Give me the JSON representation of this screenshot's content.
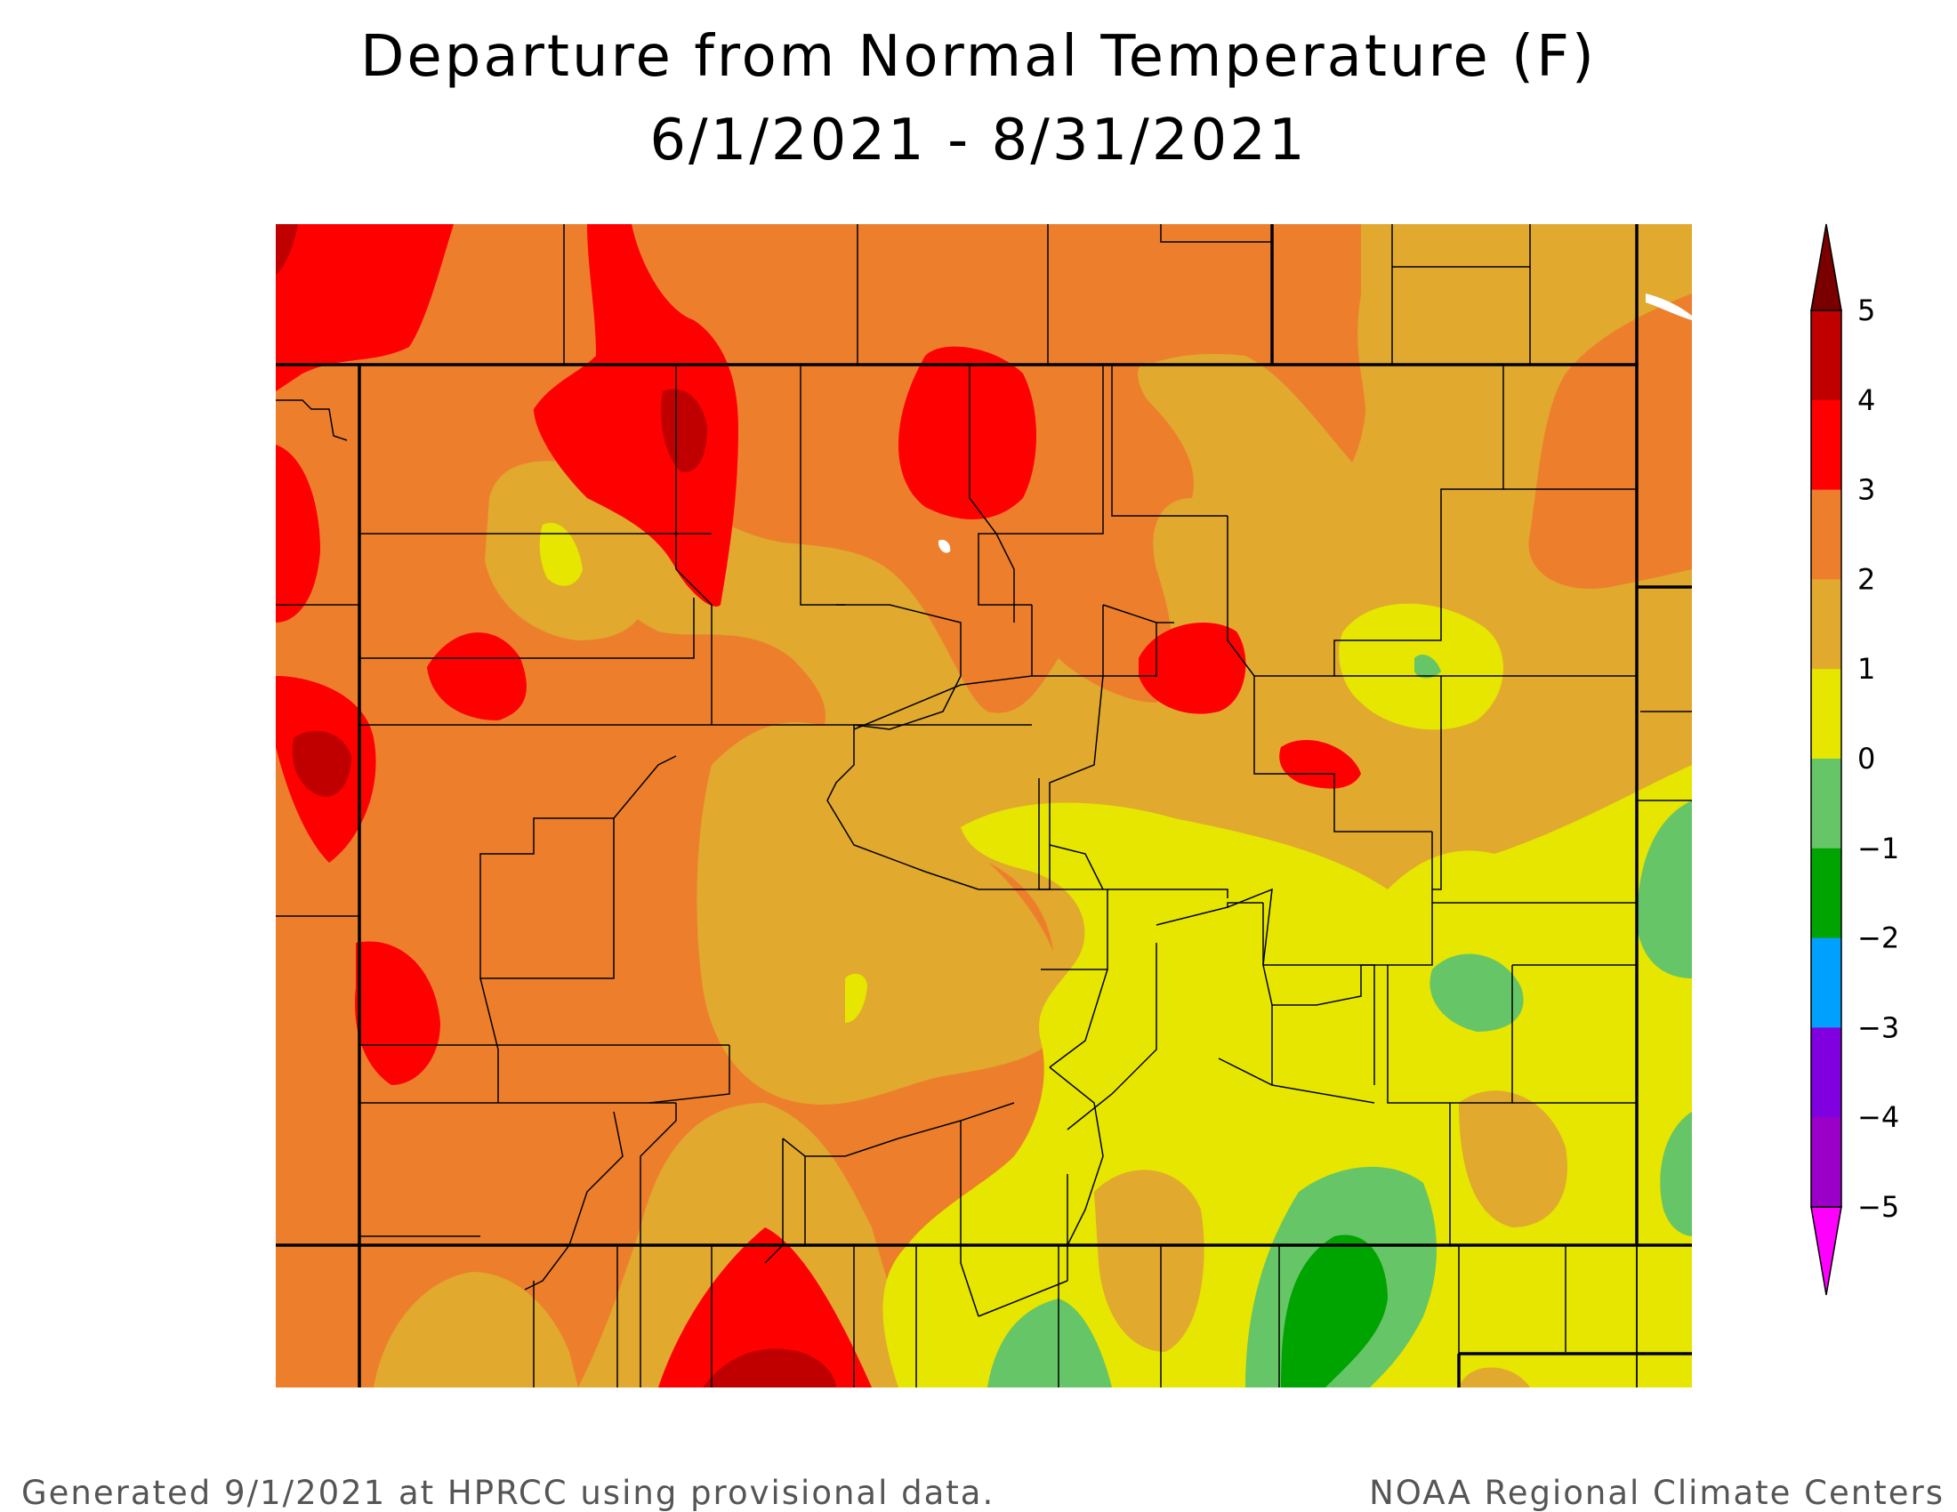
{
  "title_line1": "Departure from Normal Temperature (F)",
  "title_line2": "6/1/2021 - 8/31/2021",
  "footer_left": "Generated 9/1/2021 at HPRCC using provisional data.",
  "footer_right": "NOAA Regional Climate Centers",
  "legend": {
    "labels": [
      "5",
      "4",
      "3",
      "2",
      "1",
      "0",
      "−1",
      "−2",
      "−3",
      "−4",
      "−5"
    ],
    "over_color": "#7a0000",
    "under_color": "#ff00ff",
    "bins": [
      {
        "range": "4 to 5",
        "color": "#c00000"
      },
      {
        "range": "3 to 4",
        "color": "#ff0000"
      },
      {
        "range": "2 to 3",
        "color": "#ed7f2c"
      },
      {
        "range": "1 to 2",
        "color": "#e1a92e"
      },
      {
        "range": "0 to 1",
        "color": "#e6e600"
      },
      {
        "range": "-1 to 0",
        "color": "#66c566"
      },
      {
        "range": "-2 to -1",
        "color": "#00a400"
      },
      {
        "range": "-3 to -2",
        "color": "#00a0ff"
      },
      {
        "range": "-4 to -3",
        "color": "#8000e0"
      },
      {
        "range": "-5 to -4",
        "color": "#9a00c8"
      }
    ]
  }
}
